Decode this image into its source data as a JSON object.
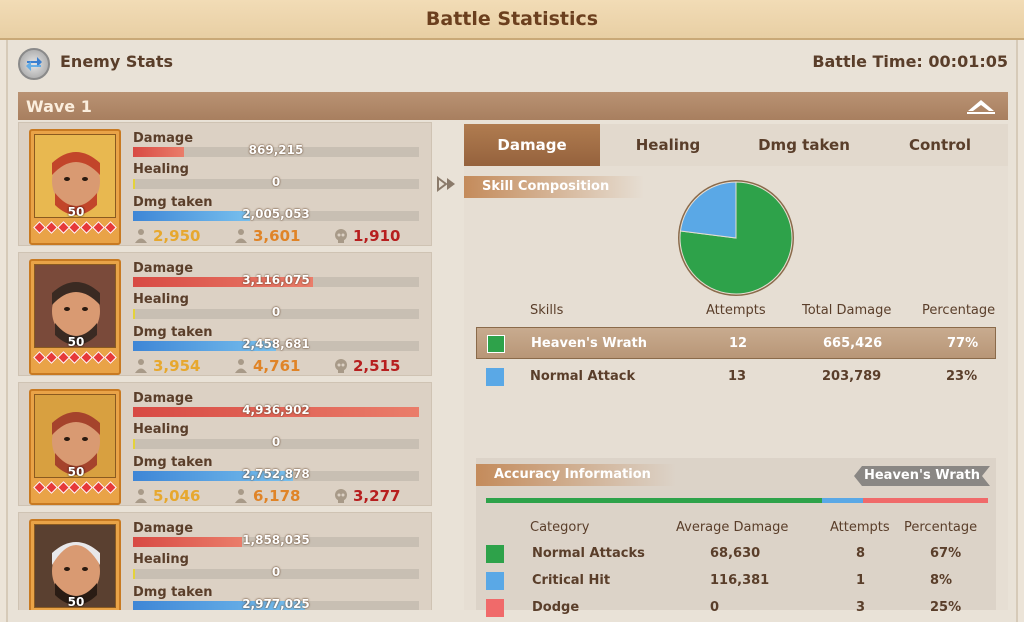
{
  "title": "Battle Statistics",
  "header": {
    "enemy_label": "Enemy Stats",
    "battle_time": "Battle Time: 00:01:05"
  },
  "wave": {
    "label": "Wave 1"
  },
  "stat_labels": {
    "damage": "Damage",
    "healing": "Healing",
    "dmg_taken": "Dmg taken"
  },
  "heroes": [
    {
      "level": "50",
      "damage": "869,215",
      "damage_frac": 0.18,
      "healing": "0",
      "healing_frac": 0.0,
      "dmg_taken": "2,005,053",
      "dmg_taken_frac": 0.41,
      "k1": "2,950",
      "k2": "3,601",
      "k3": "1,910"
    },
    {
      "level": "50",
      "damage": "3,116,075",
      "damage_frac": 0.63,
      "healing": "0",
      "healing_frac": 0.0,
      "dmg_taken": "2,458,681",
      "dmg_taken_frac": 0.5,
      "k1": "3,954",
      "k2": "4,761",
      "k3": "2,515"
    },
    {
      "level": "50",
      "damage": "4,936,902",
      "damage_frac": 1.0,
      "healing": "0",
      "healing_frac": 0.0,
      "dmg_taken": "2,752,878",
      "dmg_taken_frac": 0.56,
      "k1": "5,046",
      "k2": "6,178",
      "k3": "3,277"
    },
    {
      "level": "50",
      "damage": "1,858,035",
      "damage_frac": 0.38,
      "healing": "0",
      "healing_frac": 0.0,
      "dmg_taken": "2,977,025",
      "dmg_taken_frac": 0.6
    }
  ],
  "tabs": [
    "Damage",
    "Healing",
    "Dmg taken",
    "Control"
  ],
  "skill_composition": {
    "title": "Skill Composition",
    "headers": [
      "Skills",
      "Attempts",
      "Total Damage",
      "Percentage"
    ],
    "rows": [
      {
        "name": "Heaven's Wrath",
        "attempts": "12",
        "total": "665,426",
        "pct": "77%",
        "color": "#2ea24a",
        "value": 77
      },
      {
        "name": "Normal Attack",
        "attempts": "13",
        "total": "203,789",
        "pct": "23%",
        "color": "#5aa8e6",
        "value": 23
      }
    ]
  },
  "accuracy": {
    "title": "Accuracy Information",
    "tag": "Heaven's Wrath",
    "headers": [
      "Category",
      "Average Damage",
      "Attempts",
      "Percentage"
    ],
    "rows": [
      {
        "name": "Normal Attacks",
        "avg": "68,630",
        "attempts": "8",
        "pct": "67%",
        "color": "#2ea24a",
        "value": 67
      },
      {
        "name": "Critical Hit",
        "avg": "116,381",
        "attempts": "1",
        "pct": "8%",
        "color": "#5aa8e6",
        "value": 8
      },
      {
        "name": "Dodge",
        "avg": "0",
        "attempts": "3",
        "pct": "25%",
        "color": "#f06a6a",
        "value": 25
      }
    ]
  }
}
